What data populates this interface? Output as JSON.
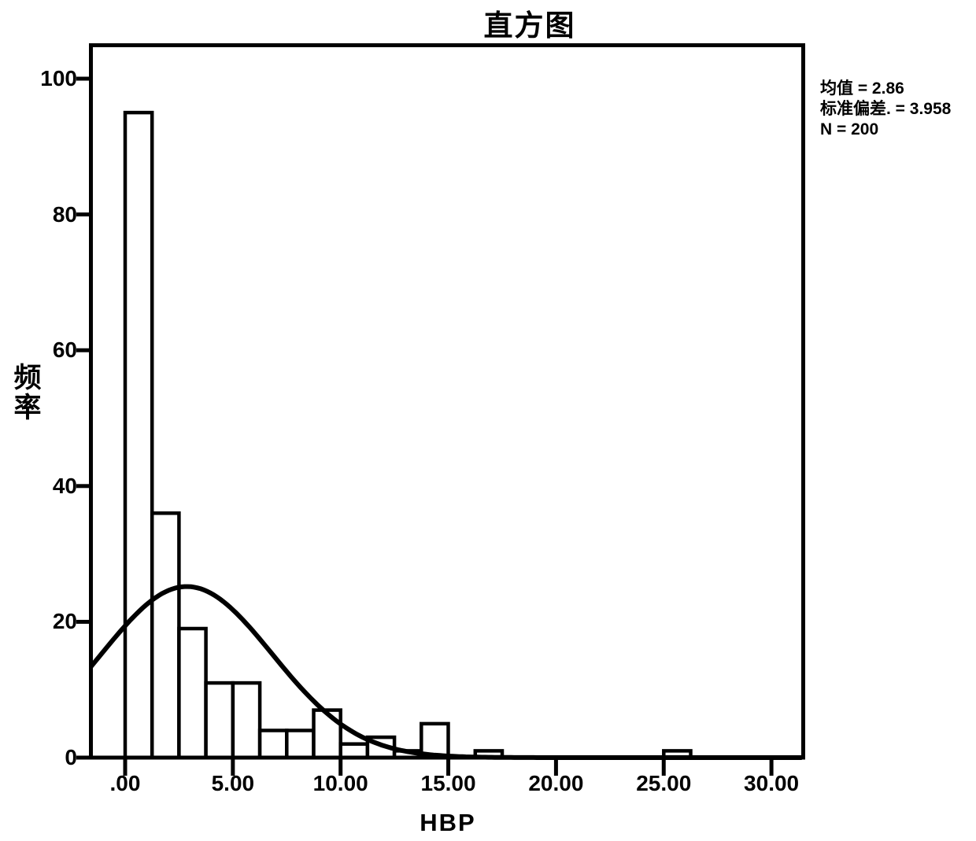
{
  "chart_data": {
    "type": "bar",
    "subtype": "histogram",
    "title": "直方图",
    "xlabel": "HBP",
    "ylabel": "频率",
    "stats_lines": [
      "均值 = 2.86",
      "标准偏差. = 3.958",
      "N = 200"
    ],
    "mean": 2.86,
    "std_dev": 3.958,
    "n": 200,
    "bin_width": 1.25,
    "bars": [
      {
        "bin_start": 0.0,
        "frequency": 95
      },
      {
        "bin_start": 1.25,
        "frequency": 36
      },
      {
        "bin_start": 2.5,
        "frequency": 19
      },
      {
        "bin_start": 3.75,
        "frequency": 11
      },
      {
        "bin_start": 5.0,
        "frequency": 11
      },
      {
        "bin_start": 6.25,
        "frequency": 4
      },
      {
        "bin_start": 7.5,
        "frequency": 4
      },
      {
        "bin_start": 8.75,
        "frequency": 7
      },
      {
        "bin_start": 10.0,
        "frequency": 2
      },
      {
        "bin_start": 11.25,
        "frequency": 3
      },
      {
        "bin_start": 12.5,
        "frequency": 1
      },
      {
        "bin_start": 13.75,
        "frequency": 5
      },
      {
        "bin_start": 16.25,
        "frequency": 1
      },
      {
        "bin_start": 25.0,
        "frequency": 1
      }
    ],
    "curve": {
      "type": "normal",
      "mean": 2.86,
      "sd": 3.958
    },
    "x_ticks": [
      {
        "value": 0,
        "label": ".00"
      },
      {
        "value": 5,
        "label": "5.00"
      },
      {
        "value": 10,
        "label": "10.00"
      },
      {
        "value": 15,
        "label": "15.00"
      },
      {
        "value": 20,
        "label": "20.00"
      },
      {
        "value": 25,
        "label": "25.00"
      },
      {
        "value": 30,
        "label": "30.00"
      }
    ],
    "y_ticks": [
      {
        "value": 0,
        "label": "0"
      },
      {
        "value": 20,
        "label": "20"
      },
      {
        "value": 40,
        "label": "40"
      },
      {
        "value": 60,
        "label": "60"
      },
      {
        "value": 80,
        "label": "80"
      },
      {
        "value": 100,
        "label": "100"
      }
    ],
    "xlim": [
      -1.6,
      31.5
    ],
    "ylim": [
      0,
      105
    ],
    "grid": false,
    "legend": "none",
    "colors": {
      "ink": "#000000",
      "bar_fill": "#ffffff",
      "background": "#ffffff"
    }
  }
}
